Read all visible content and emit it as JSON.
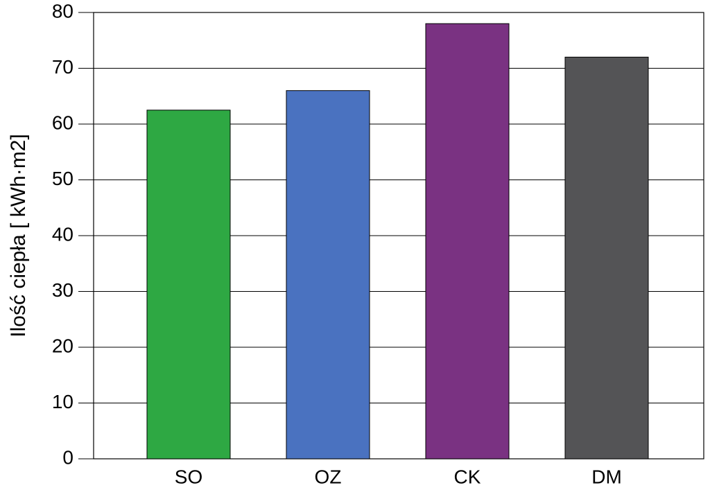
{
  "chart_data": {
    "type": "bar",
    "y_label": "Ilość ciepła [ kWh·m2]",
    "categories": [
      "SO",
      "OZ",
      "CK",
      "DM"
    ],
    "values": [
      62.5,
      66,
      78,
      72
    ],
    "colors": [
      "#2ea843",
      "#4a72c0",
      "#7a3282",
      "#545456"
    ],
    "ylim": [
      0,
      80
    ],
    "yticks": [
      0,
      10,
      20,
      30,
      40,
      50,
      60,
      70,
      80
    ],
    "grid": true
  }
}
